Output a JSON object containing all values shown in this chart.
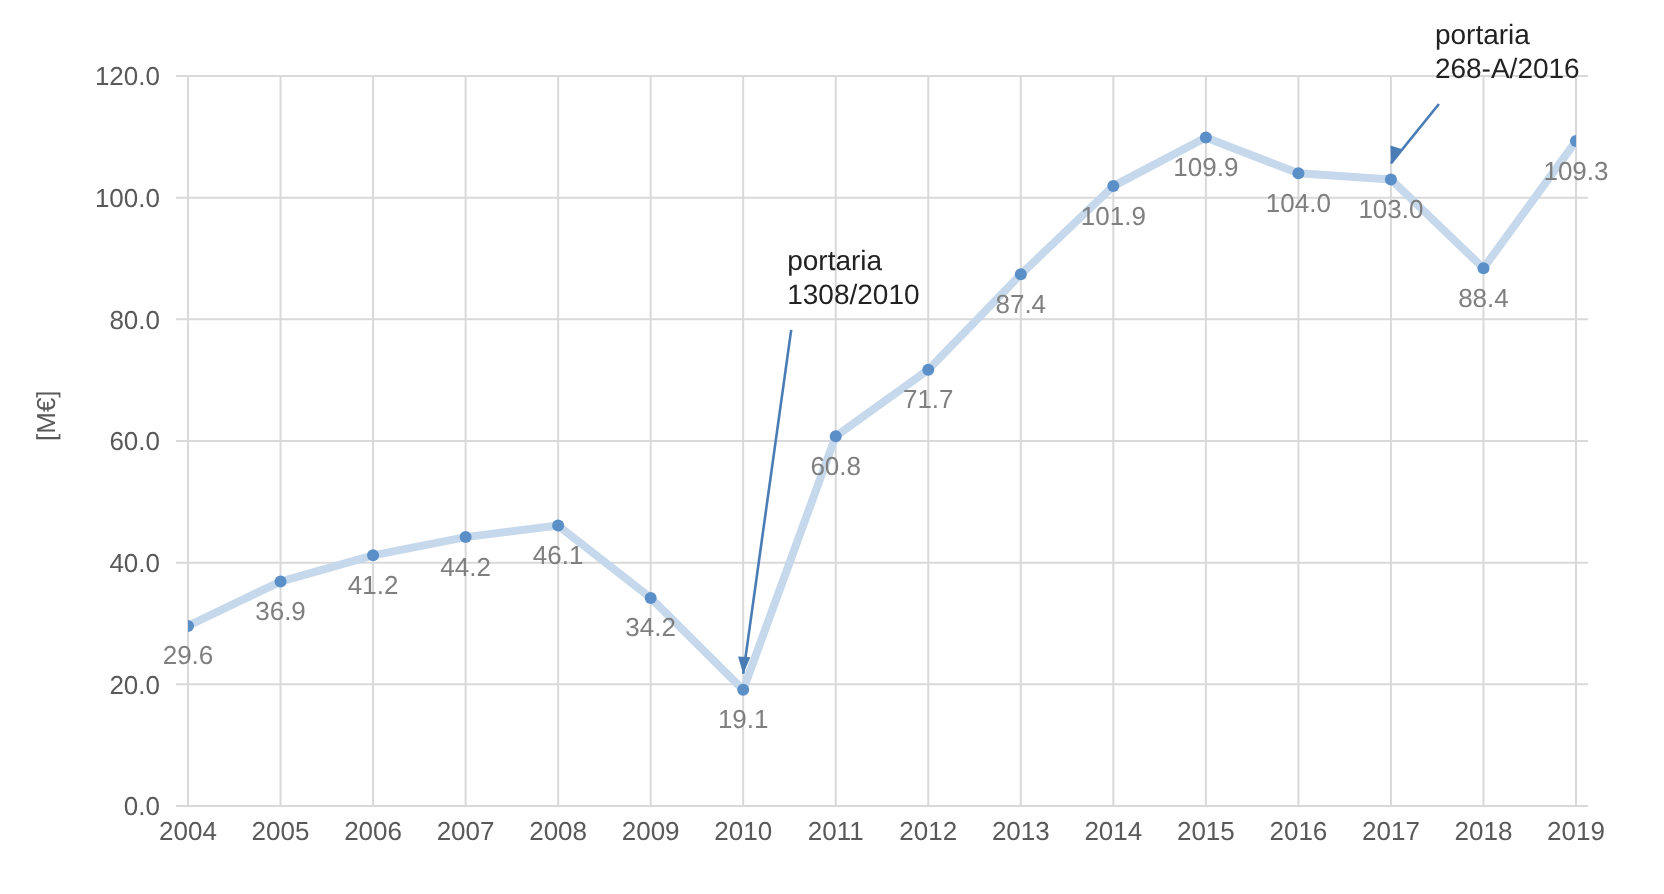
{
  "chart_data": {
    "type": "line",
    "ylabel": "[M€]",
    "categories": [
      "2004",
      "2005",
      "2006",
      "2007",
      "2008",
      "2009",
      "2010",
      "2011",
      "2012",
      "2013",
      "2014",
      "2015",
      "2016",
      "2017",
      "2018",
      "2019"
    ],
    "series": [
      {
        "color": "#5b8fc7",
        "values": [
          29.6,
          36.9,
          41.2,
          44.2,
          46.1,
          34.2,
          19.1,
          60.8,
          71.7,
          87.4,
          101.9,
          109.9,
          104.0,
          103.0,
          88.4,
          109.3
        ],
        "value_labels": [
          "29.6",
          "36.9",
          "41.2",
          "44.2",
          "46.1",
          "34.2",
          "19.1",
          "60.8",
          "71.7",
          "87.4",
          "101.9",
          "109.9",
          "104.0",
          "103.0",
          "88.4",
          "109.3"
        ]
      }
    ],
    "ylim": [
      0,
      120
    ],
    "yticks": [
      {
        "value": 0,
        "label": "0.0"
      },
      {
        "value": 20,
        "label": "20.0"
      },
      {
        "value": 40,
        "label": "40.0"
      },
      {
        "value": 60,
        "label": "60.0"
      },
      {
        "value": 80,
        "label": "80.0"
      },
      {
        "value": 100,
        "label": "100.0"
      },
      {
        "value": 120,
        "label": "120.0"
      }
    ],
    "grid": true,
    "marker": "circle",
    "annotations": [
      {
        "text": "portaria\n1308/2010",
        "x": "2010",
        "y": 19.1
      },
      {
        "text": "portaria\n268-A/2016",
        "x": "2017",
        "y": 103.0
      }
    ]
  }
}
